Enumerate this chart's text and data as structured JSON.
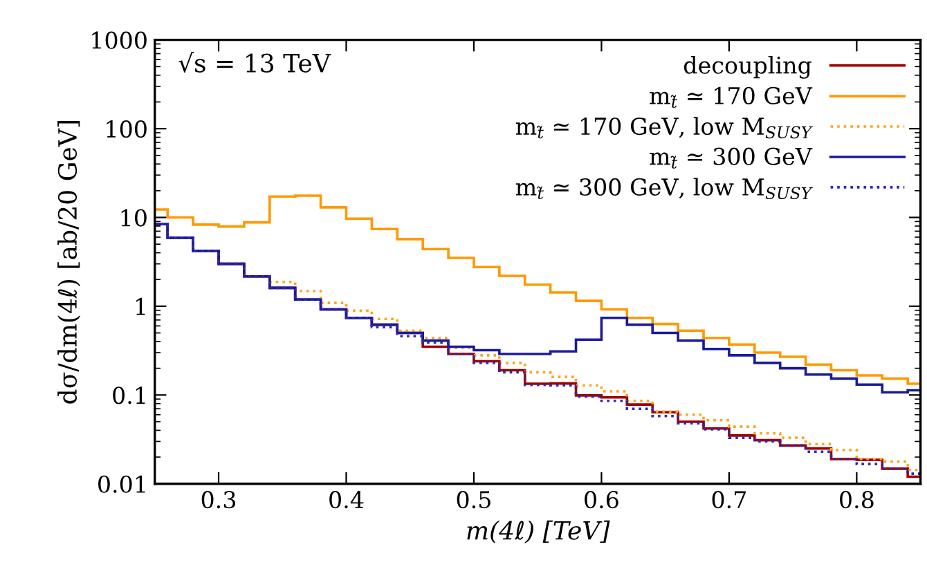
{
  "chart_data": {
    "type": "histogram",
    "xlabel": "m(4ℓ) [TeV]",
    "ylabel": "dσ/dm(4ℓ) [ab/20 GeV]",
    "annotations": [
      "√s = 13 TeV"
    ],
    "bins": [
      0.25,
      0.26,
      0.28,
      0.3,
      0.32,
      0.34,
      0.36,
      0.38,
      0.4,
      0.42,
      0.44,
      0.46,
      0.48,
      0.5,
      0.52,
      0.54,
      0.56,
      0.58,
      0.6,
      0.62,
      0.64,
      0.66,
      0.68,
      0.7,
      0.72,
      0.74,
      0.76,
      0.78,
      0.8,
      0.82,
      0.84,
      0.85
    ],
    "series": [
      {
        "name": "decoupling",
        "color": "#a00000",
        "line_style": "solid",
        "values": [
          8.4,
          5.9,
          4.2,
          3.0,
          2.17,
          1.61,
          1.19,
          0.92,
          0.74,
          0.62,
          0.5,
          0.35,
          0.29,
          0.24,
          0.19,
          0.134,
          0.135,
          0.099,
          0.094,
          0.078,
          0.064,
          0.05,
          0.042,
          0.035,
          0.031,
          0.027,
          0.025,
          0.019,
          0.0186,
          0.0148,
          0.012
        ]
      },
      {
        "name": "m$_{t̃}$ ≃ 170 GeV",
        "color": "#ff9900",
        "line_style": "solid",
        "values": [
          12.3,
          10,
          8.3,
          7.9,
          8.8,
          17.2,
          17.6,
          13,
          9.7,
          7.4,
          5.7,
          4.4,
          3.5,
          2.76,
          2.2,
          1.75,
          1.43,
          1.15,
          0.92,
          0.74,
          0.63,
          0.53,
          0.44,
          0.37,
          0.3,
          0.27,
          0.22,
          0.19,
          0.166,
          0.153,
          0.134
        ]
      },
      {
        "name": "m$_{t̃}$ ≃ 170 GeV, low M$_{SUSY}$",
        "color": "#ffa31a",
        "line_style": "dotted",
        "values": [
          8.4,
          5.9,
          4.2,
          3.0,
          2.17,
          1.88,
          1.48,
          1.09,
          0.89,
          0.72,
          0.53,
          0.44,
          0.34,
          0.28,
          0.23,
          0.18,
          0.16,
          0.128,
          0.11,
          0.086,
          0.065,
          0.06,
          0.052,
          0.044,
          0.037,
          0.033,
          0.028,
          0.024,
          0.019,
          0.0178,
          0.0143
        ]
      },
      {
        "name": "m$_{t̃}$ ≃ 300 GeV",
        "color": "#1a1a9a",
        "line_style": "solid",
        "values": [
          8.4,
          5.9,
          4.2,
          3.0,
          2.17,
          1.61,
          1.19,
          0.92,
          0.74,
          0.62,
          0.5,
          0.41,
          0.35,
          0.32,
          0.29,
          0.29,
          0.31,
          0.42,
          0.74,
          0.62,
          0.5,
          0.41,
          0.33,
          0.28,
          0.23,
          0.2,
          0.17,
          0.153,
          0.131,
          0.107,
          0.113
        ]
      },
      {
        "name": "m$_{t̃}$ ≃ 300 GeV, low M$_{SUSY}$",
        "color": "#2a2ab4",
        "line_style": "dotted",
        "values": [
          8.4,
          5.9,
          4.2,
          3.0,
          2.17,
          1.61,
          1.19,
          0.92,
          0.74,
          0.58,
          0.46,
          0.39,
          0.29,
          0.23,
          0.18,
          0.13,
          0.128,
          0.096,
          0.086,
          0.07,
          0.058,
          0.048,
          0.041,
          0.033,
          0.03,
          0.027,
          0.023,
          0.019,
          0.0167,
          0.0148,
          0.013
        ]
      }
    ],
    "xlim": [
      0.25,
      0.85
    ],
    "xticks": [
      0.3,
      0.4,
      0.5,
      0.6,
      0.7,
      0.8
    ],
    "ylim": [
      0.01,
      1000
    ],
    "yticks": [
      0.01,
      0.1,
      1,
      10,
      100,
      1000
    ],
    "log": "y",
    "grid": false,
    "legend": "top right"
  }
}
